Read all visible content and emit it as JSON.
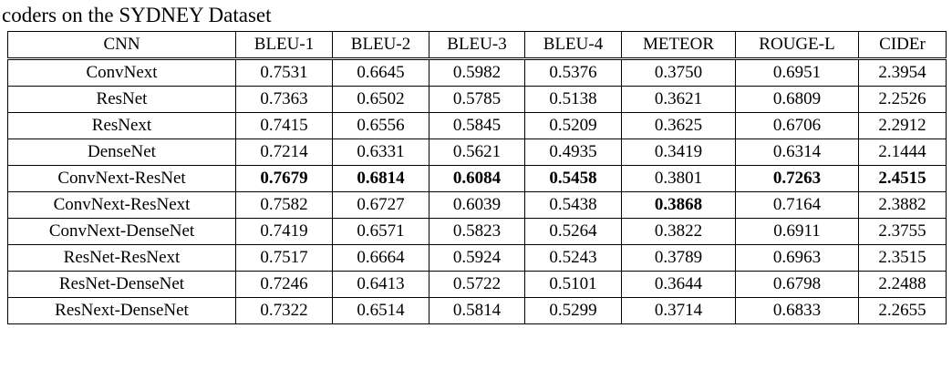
{
  "caption": "coders on the SYDNEY Dataset",
  "table": {
    "columns": [
      "CNN",
      "BLEU-1",
      "BLEU-2",
      "BLEU-3",
      "BLEU-4",
      "METEOR",
      "ROUGE-L",
      "CIDEr"
    ],
    "rows": [
      {
        "name": "ConvNext",
        "values": [
          "0.7531",
          "0.6645",
          "0.5982",
          "0.5376",
          "0.3750",
          "0.6951",
          "2.3954"
        ],
        "bold_indices": []
      },
      {
        "name": "ResNet",
        "values": [
          "0.7363",
          "0.6502",
          "0.5785",
          "0.5138",
          "0.3621",
          "0.6809",
          "2.2526"
        ],
        "bold_indices": []
      },
      {
        "name": "ResNext",
        "values": [
          "0.7415",
          "0.6556",
          "0.5845",
          "0.5209",
          "0.3625",
          "0.6706",
          "2.2912"
        ],
        "bold_indices": []
      },
      {
        "name": "DenseNet",
        "values": [
          "0.7214",
          "0.6331",
          "0.5621",
          "0.4935",
          "0.3419",
          "0.6314",
          "2.1444"
        ],
        "bold_indices": []
      },
      {
        "name": "ConvNext-ResNet",
        "values": [
          "0.7679",
          "0.6814",
          "0.6084",
          "0.5458",
          "0.3801",
          "0.7263",
          "2.4515"
        ],
        "bold_indices": [
          0,
          1,
          2,
          3,
          5,
          6
        ]
      },
      {
        "name": "ConvNext-ResNext",
        "values": [
          "0.7582",
          "0.6727",
          "0.6039",
          "0.5438",
          "0.3868",
          "0.7164",
          "2.3882"
        ],
        "bold_indices": [
          4
        ]
      },
      {
        "name": "ConvNext-DenseNet",
        "values": [
          "0.7419",
          "0.6571",
          "0.5823",
          "0.5264",
          "0.3822",
          "0.6911",
          "2.3755"
        ],
        "bold_indices": []
      },
      {
        "name": "ResNet-ResNext",
        "values": [
          "0.7517",
          "0.6664",
          "0.5924",
          "0.5243",
          "0.3789",
          "0.6963",
          "2.3515"
        ],
        "bold_indices": []
      },
      {
        "name": "ResNet-DenseNet",
        "values": [
          "0.7246",
          "0.6413",
          "0.5722",
          "0.5101",
          "0.3644",
          "0.6798",
          "2.2488"
        ],
        "bold_indices": []
      },
      {
        "name": "ResNext-DenseNet",
        "values": [
          "0.7322",
          "0.6514",
          "0.5814",
          "0.5299",
          "0.3714",
          "0.6833",
          "2.2655"
        ],
        "bold_indices": []
      }
    ]
  },
  "chart_data": {
    "type": "table",
    "title": "coders on the SYDNEY Dataset",
    "columns": [
      "CNN",
      "BLEU-1",
      "BLEU-2",
      "BLEU-3",
      "BLEU-4",
      "METEOR",
      "ROUGE-L",
      "CIDEr"
    ],
    "rows": [
      [
        "ConvNext",
        0.7531,
        0.6645,
        0.5982,
        0.5376,
        0.375,
        0.6951,
        2.3954
      ],
      [
        "ResNet",
        0.7363,
        0.6502,
        0.5785,
        0.5138,
        0.3621,
        0.6809,
        2.2526
      ],
      [
        "ResNext",
        0.7415,
        0.6556,
        0.5845,
        0.5209,
        0.3625,
        0.6706,
        2.2912
      ],
      [
        "DenseNet",
        0.7214,
        0.6331,
        0.5621,
        0.4935,
        0.3419,
        0.6314,
        2.1444
      ],
      [
        "ConvNext-ResNet",
        0.7679,
        0.6814,
        0.6084,
        0.5458,
        0.3801,
        0.7263,
        2.4515
      ],
      [
        "ConvNext-ResNext",
        0.7582,
        0.6727,
        0.6039,
        0.5438,
        0.3868,
        0.7164,
        2.3882
      ],
      [
        "ConvNext-DenseNet",
        0.7419,
        0.6571,
        0.5823,
        0.5264,
        0.3822,
        0.6911,
        2.3755
      ],
      [
        "ResNet-ResNext",
        0.7517,
        0.6664,
        0.5924,
        0.5243,
        0.3789,
        0.6963,
        2.3515
      ],
      [
        "ResNet-DenseNet",
        0.7246,
        0.6413,
        0.5722,
        0.5101,
        0.3644,
        0.6798,
        2.2488
      ],
      [
        "ResNext-DenseNet",
        0.7322,
        0.6514,
        0.5814,
        0.5299,
        0.3714,
        0.6833,
        2.2655
      ]
    ]
  }
}
